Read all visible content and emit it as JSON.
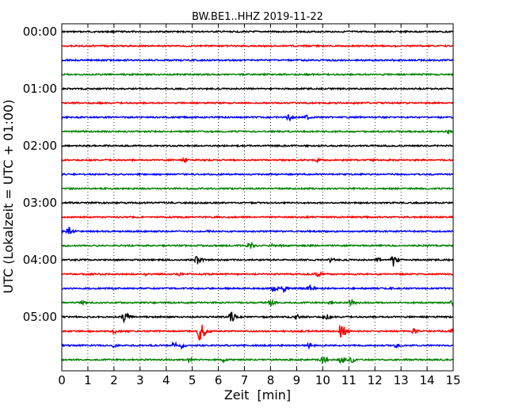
{
  "chart_data": {
    "type": "line",
    "title": "BW.BE1..HHZ 2019-11-22",
    "xlabel": "Zeit  [min]",
    "ylabel": "UTC (Lokalzeit = UTC + 01:00)",
    "xlim": [
      0,
      15
    ],
    "x_ticks": [
      "0",
      "1",
      "2",
      "3",
      "4",
      "5",
      "6",
      "7",
      "8",
      "9",
      "10",
      "11",
      "12",
      "13",
      "14",
      "15"
    ],
    "y_tick_labels": [
      "00:00",
      "01:00",
      "02:00",
      "03:00",
      "04:00",
      "05:00"
    ],
    "grid": "vertical dotted",
    "trace_minutes": 15,
    "colors": [
      "#000000",
      "#ff0000",
      "#0000ff",
      "#008000"
    ],
    "traces": [
      {
        "start": "00:00",
        "events": []
      },
      {
        "start": "00:15",
        "events": []
      },
      {
        "start": "00:30",
        "events": []
      },
      {
        "start": "00:45",
        "events": [
          {
            "t": 2.7,
            "amp": 0.08
          }
        ]
      },
      {
        "start": "01:00",
        "events": []
      },
      {
        "start": "01:15",
        "events": []
      },
      {
        "start": "01:30",
        "events": [
          {
            "t": 8.7,
            "amp": 0.35
          },
          {
            "t": 9.4,
            "amp": 0.25
          }
        ]
      },
      {
        "start": "01:45",
        "events": [
          {
            "t": 14.8,
            "amp": 0.15
          }
        ]
      },
      {
        "start": "02:00",
        "events": []
      },
      {
        "start": "02:15",
        "events": [
          {
            "t": 4.7,
            "amp": 0.2
          },
          {
            "t": 9.8,
            "amp": 0.2
          },
          {
            "t": 11.9,
            "amp": 0.1
          }
        ]
      },
      {
        "start": "02:30",
        "events": [
          {
            "t": 4.0,
            "amp": 0.08
          }
        ]
      },
      {
        "start": "02:45",
        "events": []
      },
      {
        "start": "03:00",
        "events": [
          {
            "t": 3.8,
            "amp": 0.15
          },
          {
            "t": 4.2,
            "amp": 0.1
          }
        ]
      },
      {
        "start": "03:15",
        "events": []
      },
      {
        "start": "03:30",
        "events": [
          {
            "t": 0.25,
            "amp": 0.4
          },
          {
            "t": 5.6,
            "amp": 0.15
          }
        ]
      },
      {
        "start": "03:45",
        "events": [
          {
            "t": 7.2,
            "amp": 0.35
          },
          {
            "t": 8.0,
            "amp": 0.2
          },
          {
            "t": 8.4,
            "amp": 0.15
          },
          {
            "t": 14.0,
            "amp": 0.15
          }
        ]
      },
      {
        "start": "04:00",
        "events": [
          {
            "t": 5.2,
            "amp": 0.5
          },
          {
            "t": 10.3,
            "amp": 0.25
          },
          {
            "t": 12.1,
            "amp": 0.2
          },
          {
            "t": 12.7,
            "amp": 0.6
          }
        ]
      },
      {
        "start": "04:15",
        "events": [
          {
            "t": 3.2,
            "amp": 0.15
          },
          {
            "t": 4.5,
            "amp": 0.15
          },
          {
            "t": 9.8,
            "amp": 0.3
          }
        ]
      },
      {
        "start": "04:30",
        "events": [
          {
            "t": 8.1,
            "amp": 0.35
          },
          {
            "t": 8.5,
            "amp": 0.4
          },
          {
            "t": 9.5,
            "amp": 0.35
          }
        ]
      },
      {
        "start": "04:45",
        "events": [
          {
            "t": 0.8,
            "amp": 0.2
          },
          {
            "t": 8.0,
            "amp": 0.35
          },
          {
            "t": 10.3,
            "amp": 0.25
          },
          {
            "t": 11.1,
            "amp": 0.35
          },
          {
            "t": 15.0,
            "amp": 0.5
          }
        ]
      },
      {
        "start": "05:00",
        "events": [
          {
            "t": 2.4,
            "amp": 0.5
          },
          {
            "t": 6.5,
            "amp": 0.5
          },
          {
            "t": 9.0,
            "amp": 0.25
          },
          {
            "t": 10.1,
            "amp": 0.35
          }
        ]
      },
      {
        "start": "05:15",
        "events": [
          {
            "t": 2.0,
            "amp": 0.25
          },
          {
            "t": 5.3,
            "amp": 1.0
          },
          {
            "t": 10.7,
            "amp": 0.8
          },
          {
            "t": 13.5,
            "amp": 0.3
          },
          {
            "t": 15.0,
            "amp": 0.4
          }
        ]
      },
      {
        "start": "05:30",
        "events": [
          {
            "t": 2.0,
            "amp": 0.2
          },
          {
            "t": 4.3,
            "amp": 0.35
          },
          {
            "t": 4.6,
            "amp": 0.3
          },
          {
            "t": 9.5,
            "amp": 0.3
          },
          {
            "t": 12.8,
            "amp": 0.2
          }
        ]
      },
      {
        "start": "05:45",
        "events": [
          {
            "t": 4.9,
            "amp": 0.3
          },
          {
            "t": 6.2,
            "amp": 0.2
          },
          {
            "t": 10.0,
            "amp": 0.35
          },
          {
            "t": 10.7,
            "amp": 0.45
          },
          {
            "t": 11.1,
            "amp": 0.3
          }
        ]
      }
    ]
  }
}
